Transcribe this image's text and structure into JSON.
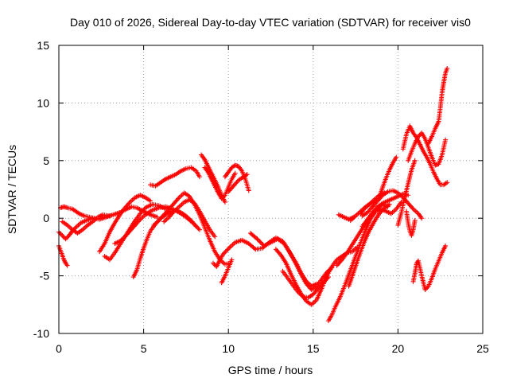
{
  "chart_data": {
    "type": "scatter",
    "title": "Day 010 of 2026, Sidereal Day-to-day VTEC variation (SDTVAR) for receiver vis0",
    "xlabel": "GPS time / hours",
    "ylabel": "SDTVAR / TECUs",
    "xlim": [
      0,
      25
    ],
    "ylim": [
      -10,
      15
    ],
    "xticks": [
      "0",
      "5",
      "10",
      "15",
      "20",
      "25"
    ],
    "yticks": [
      "-10",
      "-5",
      "0",
      "5",
      "10",
      "15"
    ],
    "grid": true,
    "marker": "plus",
    "color": "#ff0000",
    "series": [
      {
        "x": [
          0.0,
          0.1,
          0.2,
          0.3,
          0.4,
          0.5
        ],
        "y": [
          -2.4,
          -2.8,
          -3.2,
          -3.6,
          -3.9,
          -4.1
        ]
      },
      {
        "x": [
          0.0,
          0.2,
          0.4,
          0.6,
          0.8,
          1.0,
          1.3,
          1.6,
          2.0,
          2.4,
          2.8,
          3.2,
          3.6,
          4.0,
          4.3,
          4.6,
          5.0,
          5.4,
          5.8
        ],
        "y": [
          -1.2,
          -1.5,
          -1.8,
          -1.5,
          -1.1,
          -0.8,
          -0.4,
          -0.2,
          0.0,
          -0.1,
          0.1,
          0.3,
          0.5,
          0.8,
          1.0,
          0.9,
          0.6,
          0.3,
          0.1
        ]
      },
      {
        "x": [
          0.1,
          0.3,
          0.5,
          0.8,
          1.0,
          1.2,
          1.5,
          1.8,
          2.1
        ],
        "y": [
          0.9,
          1.0,
          0.9,
          0.8,
          0.6,
          0.4,
          0.2,
          0.1,
          0.0
        ]
      },
      {
        "x": [
          0.2,
          0.5,
          0.8,
          1.1,
          1.4,
          1.7,
          2.0,
          2.3,
          2.6,
          3.0
        ],
        "y": [
          -0.3,
          -0.6,
          -1.0,
          -1.3,
          -1.0,
          -0.6,
          -0.3,
          0.1,
          0.3,
          0.2
        ]
      },
      {
        "x": [
          2.4,
          2.7,
          3.0,
          3.3,
          3.6,
          3.9,
          4.2,
          4.5,
          4.8,
          5.1,
          5.4
        ],
        "y": [
          -2.9,
          -2.2,
          -1.2,
          -0.4,
          0.3,
          0.9,
          1.4,
          1.8,
          2.0,
          1.8,
          1.5
        ]
      },
      {
        "x": [
          2.7,
          3.0,
          3.3,
          3.6,
          3.9,
          4.2,
          4.5,
          4.8,
          5.1,
          5.5,
          5.9,
          6.3
        ],
        "y": [
          -3.3,
          -3.6,
          -3.0,
          -2.3,
          -1.6,
          -0.9,
          -0.2,
          0.4,
          0.9,
          1.2,
          1.1,
          0.8
        ]
      },
      {
        "x": [
          3.3,
          3.6,
          3.9,
          4.2,
          4.5,
          4.8,
          5.1,
          5.5,
          5.9,
          6.3,
          6.7,
          7.1,
          7.5,
          7.9,
          8.3
        ],
        "y": [
          -2.2,
          -2.0,
          -1.6,
          -1.1,
          -0.6,
          -0.1,
          0.3,
          0.7,
          0.9,
          1.0,
          0.8,
          0.5,
          0.1,
          -0.4,
          -1.0
        ]
      },
      {
        "x": [
          4.4,
          4.6,
          4.8,
          5.0,
          5.2,
          5.4,
          5.7,
          6.0,
          6.3,
          6.6,
          6.9,
          7.2,
          7.5,
          7.8,
          8.1
        ],
        "y": [
          -5.1,
          -4.5,
          -3.5,
          -2.6,
          -1.8,
          -1.1,
          -0.5,
          0.0,
          0.3,
          0.6,
          0.7,
          0.5,
          0.2,
          -0.2,
          -0.7
        ]
      },
      {
        "x": [
          5.6,
          5.9,
          6.2,
          6.5,
          6.8,
          7.1,
          7.4,
          7.7,
          8.0,
          8.3,
          8.6,
          8.9,
          9.2,
          9.5,
          9.8,
          10.1
        ],
        "y": [
          -0.6,
          -0.2,
          0.3,
          0.8,
          1.3,
          1.8,
          2.2,
          1.9,
          1.2,
          0.3,
          -0.8,
          -1.9,
          -2.9,
          -3.6,
          -4.0,
          -3.9
        ]
      },
      {
        "x": [
          6.2,
          6.5,
          6.8,
          7.1,
          7.4,
          7.7,
          8.0,
          8.3,
          8.6,
          8.9,
          9.2
        ],
        "y": [
          -0.3,
          0.1,
          0.6,
          1.0,
          1.4,
          1.6,
          1.3,
          0.6,
          -0.2,
          -1.0,
          -1.6
        ]
      },
      {
        "x": [
          5.4,
          5.7,
          6.0,
          6.3,
          6.6,
          6.9,
          7.2,
          7.5,
          7.8,
          8.1,
          8.3
        ],
        "y": [
          2.9,
          2.8,
          3.1,
          3.4,
          3.6,
          3.8,
          4.1,
          4.3,
          4.4,
          4.1,
          3.6
        ]
      },
      {
        "x": [
          8.4,
          8.6,
          8.8,
          9.0,
          9.2,
          9.4,
          9.6,
          9.8
        ],
        "y": [
          5.5,
          5.1,
          4.5,
          3.9,
          3.3,
          2.7,
          2.0,
          1.4
        ]
      },
      {
        "x": [
          8.6,
          8.8,
          9.0,
          9.2,
          9.4,
          9.6,
          9.8,
          10.0,
          10.2,
          10.4
        ],
        "y": [
          4.4,
          4.0,
          3.4,
          2.8,
          2.2,
          1.7,
          2.0,
          2.7,
          3.4,
          3.9
        ]
      },
      {
        "x": [
          9.8,
          10.0,
          10.2,
          10.4,
          10.6,
          10.8,
          11.0,
          11.2
        ],
        "y": [
          3.6,
          4.0,
          4.4,
          4.6,
          4.5,
          4.1,
          3.4,
          2.4
        ]
      },
      {
        "x": [
          10.0,
          10.3,
          10.6,
          10.9,
          11.1
        ],
        "y": [
          2.3,
          2.8,
          3.3,
          3.6,
          3.8
        ]
      },
      {
        "x": [
          9.1,
          9.3,
          9.5,
          9.7,
          9.9,
          10.1,
          10.4,
          10.8,
          11.2,
          11.6,
          12.0,
          12.4,
          12.8,
          13.2,
          13.6,
          14.0,
          14.3,
          14.6,
          14.9,
          15.2
        ],
        "y": [
          -3.9,
          -4.2,
          -3.6,
          -3.1,
          -2.8,
          -2.5,
          -2.1,
          -1.9,
          -2.2,
          -2.7,
          -2.6,
          -2.1,
          -1.7,
          -2.0,
          -2.9,
          -3.9,
          -4.8,
          -5.5,
          -5.9,
          -5.7
        ]
      },
      {
        "x": [
          9.6,
          9.8,
          10.0,
          10.2
        ],
        "y": [
          -5.6,
          -5.0,
          -4.3,
          -3.6
        ]
      },
      {
        "x": [
          11.3,
          11.7,
          12.1,
          12.5,
          12.9,
          13.3,
          13.7,
          14.0,
          14.3,
          14.6,
          14.9,
          15.2,
          15.5,
          15.8,
          16.1
        ],
        "y": [
          -1.3,
          -1.8,
          -2.4,
          -2.1,
          -1.8,
          -2.2,
          -3.2,
          -4.0,
          -4.9,
          -5.7,
          -6.2,
          -5.9,
          -5.3,
          -4.7,
          -4.3
        ]
      },
      {
        "x": [
          12.8,
          13.1,
          13.4,
          13.7,
          14.0,
          14.3,
          14.6,
          14.9,
          15.2,
          15.5,
          15.8,
          16.1,
          16.4,
          16.7,
          17.0,
          17.3,
          17.6
        ],
        "y": [
          -2.7,
          -3.2,
          -3.9,
          -4.9,
          -5.8,
          -6.6,
          -7.2,
          -7.5,
          -7.1,
          -6.1,
          -5.0,
          -4.2,
          -3.6,
          -3.3,
          -3.0,
          -2.9,
          -2.5
        ]
      },
      {
        "x": [
          13.2,
          13.5,
          13.8,
          14.1,
          14.4,
          14.7,
          15.0,
          15.3,
          15.6,
          15.9
        ],
        "y": [
          -4.6,
          -5.2,
          -5.8,
          -6.4,
          -6.8,
          -6.9,
          -6.6,
          -6.1,
          -5.6,
          -5.1
        ]
      },
      {
        "x": [
          15.9,
          16.1,
          16.3,
          16.6,
          16.9,
          17.2,
          17.5,
          17.8,
          18.1,
          18.4,
          18.7,
          19.0,
          19.3,
          19.6,
          19.9,
          20.2
        ],
        "y": [
          -8.9,
          -8.4,
          -7.7,
          -6.8,
          -5.7,
          -4.5,
          -3.3,
          -2.1,
          -1.0,
          0.0,
          0.6,
          0.8,
          0.6,
          0.4,
          0.8,
          1.4
        ]
      },
      {
        "x": [
          16.4,
          16.7,
          17.0,
          17.3,
          17.6,
          17.9,
          18.2,
          18.5,
          18.8,
          19.1,
          19.4
        ],
        "y": [
          -4.1,
          -3.6,
          -3.0,
          -2.3,
          -1.6,
          -0.9,
          -0.2,
          0.4,
          0.9,
          1.2,
          1.0
        ]
      },
      {
        "x": [
          17.1,
          17.4,
          17.7,
          18.0,
          18.3,
          18.6,
          18.9,
          19.2,
          19.5
        ],
        "y": [
          -5.9,
          -4.6,
          -3.3,
          -2.1,
          -1.1,
          -0.3,
          0.4,
          0.9,
          1.2
        ]
      },
      {
        "x": [
          17.9,
          18.2,
          18.5,
          18.8,
          19.1,
          19.4,
          19.7,
          20.0,
          20.3,
          20.6
        ],
        "y": [
          -0.7,
          -0.1,
          0.5,
          1.0,
          1.3,
          1.5,
          1.7,
          1.9,
          2.1,
          2.0
        ]
      },
      {
        "x": [
          17.2,
          17.5,
          17.8,
          18.1,
          18.4,
          18.7
        ],
        "y": [
          -0.2,
          0.2,
          0.6,
          1.0,
          1.3,
          1.5
        ]
      },
      {
        "x": [
          17.9,
          18.2,
          18.5,
          18.8,
          19.1,
          19.4,
          19.7,
          20.0,
          20.3,
          20.6,
          20.9,
          21.2,
          21.4
        ],
        "y": [
          0.2,
          0.5,
          1.0,
          1.5,
          2.0,
          2.3,
          2.4,
          2.2,
          1.8,
          1.3,
          0.8,
          0.4,
          0.0
        ]
      },
      {
        "x": [
          17.8,
          18.0,
          18.3,
          18.6,
          18.9,
          19.2
        ],
        "y": [
          0.4,
          0.8,
          1.2,
          1.6,
          2.0,
          2.2
        ]
      },
      {
        "x": [
          16.5,
          16.8,
          17.1,
          17.4
        ],
        "y": [
          0.3,
          0.1,
          -0.1,
          0.1
        ]
      },
      {
        "x": [
          18.9,
          19.1,
          19.3,
          19.5,
          19.7,
          19.9
        ],
        "y": [
          1.8,
          2.7,
          3.5,
          4.2,
          4.8,
          5.3
        ]
      },
      {
        "x": [
          20.0,
          20.2,
          20.4,
          20.6,
          20.8,
          21.0
        ],
        "y": [
          -0.6,
          0.5,
          1.8,
          3.0,
          4.2,
          5.0
        ]
      },
      {
        "x": [
          20.3,
          20.5,
          20.7,
          20.9,
          21.1,
          21.3,
          21.5,
          21.7,
          21.9,
          22.1,
          22.3,
          22.5,
          22.7,
          22.9
        ],
        "y": [
          6.0,
          7.3,
          8.0,
          7.4,
          7.0,
          6.4,
          5.8,
          5.3,
          4.7,
          4.0,
          3.4,
          2.9,
          2.9,
          3.1
        ]
      },
      {
        "x": [
          20.6,
          20.8,
          21.0,
          21.2,
          21.4,
          21.6,
          21.8,
          22.0,
          22.2,
          22.4,
          22.6,
          22.8
        ],
        "y": [
          5.0,
          5.8,
          6.5,
          7.1,
          7.4,
          6.9,
          6.1,
          5.3,
          4.6,
          4.7,
          5.5,
          6.8
        ]
      },
      {
        "x": [
          20.5,
          20.6,
          20.7,
          20.8,
          20.9,
          21.0
        ],
        "y": [
          0.6,
          -0.4,
          -1.1,
          -1.5,
          -1.0,
          -0.2
        ]
      },
      {
        "x": [
          20.9,
          21.0,
          21.1,
          21.2,
          21.4,
          21.6,
          21.8,
          22.0,
          22.2,
          22.4,
          22.6,
          22.8
        ],
        "y": [
          -5.5,
          -4.8,
          -3.9,
          -3.7,
          -5.0,
          -6.2,
          -5.9,
          -5.2,
          -4.4,
          -3.7,
          -3.0,
          -2.4
        ]
      },
      {
        "x": [
          21.8,
          22.0,
          22.2,
          22.4,
          22.5,
          22.6,
          22.7,
          22.8,
          22.9
        ],
        "y": [
          6.5,
          7.1,
          7.8,
          8.4,
          9.6,
          10.9,
          11.8,
          12.6,
          13.0
        ]
      }
    ]
  }
}
